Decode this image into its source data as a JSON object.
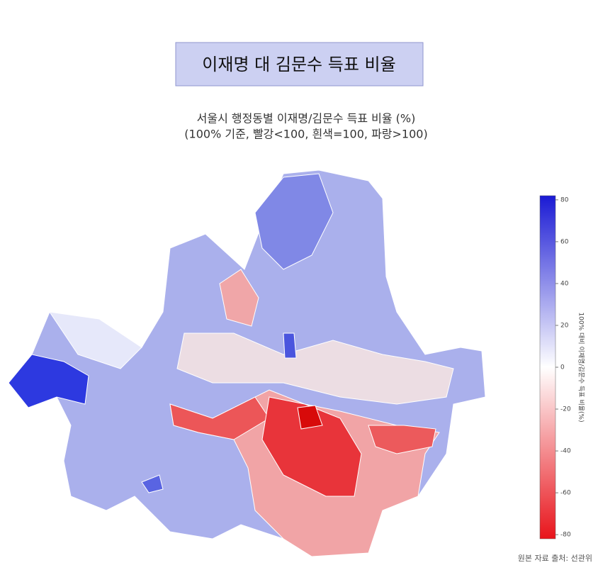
{
  "header": {
    "title": "이재명 대 김문수 득표 비율"
  },
  "map": {
    "title_lines": [
      "서울시 행정동별 이재명/김문수 득표 비율 (%)",
      "(100% 기준, 빨강<100, 흰색=100, 파랑>100)"
    ]
  },
  "colorbar": {
    "label": "100% 대비 이재명/김문수 득표 비율(%)",
    "lim": [
      -82,
      82
    ],
    "ticks": [
      80,
      60,
      40,
      20,
      0,
      -20,
      -40,
      -60,
      -80
    ],
    "colors": [
      "#e8141b",
      "#ffffff",
      "#1a1ad4"
    ]
  },
  "footer": {
    "source": "원본 자료 출처: 선관위"
  }
}
